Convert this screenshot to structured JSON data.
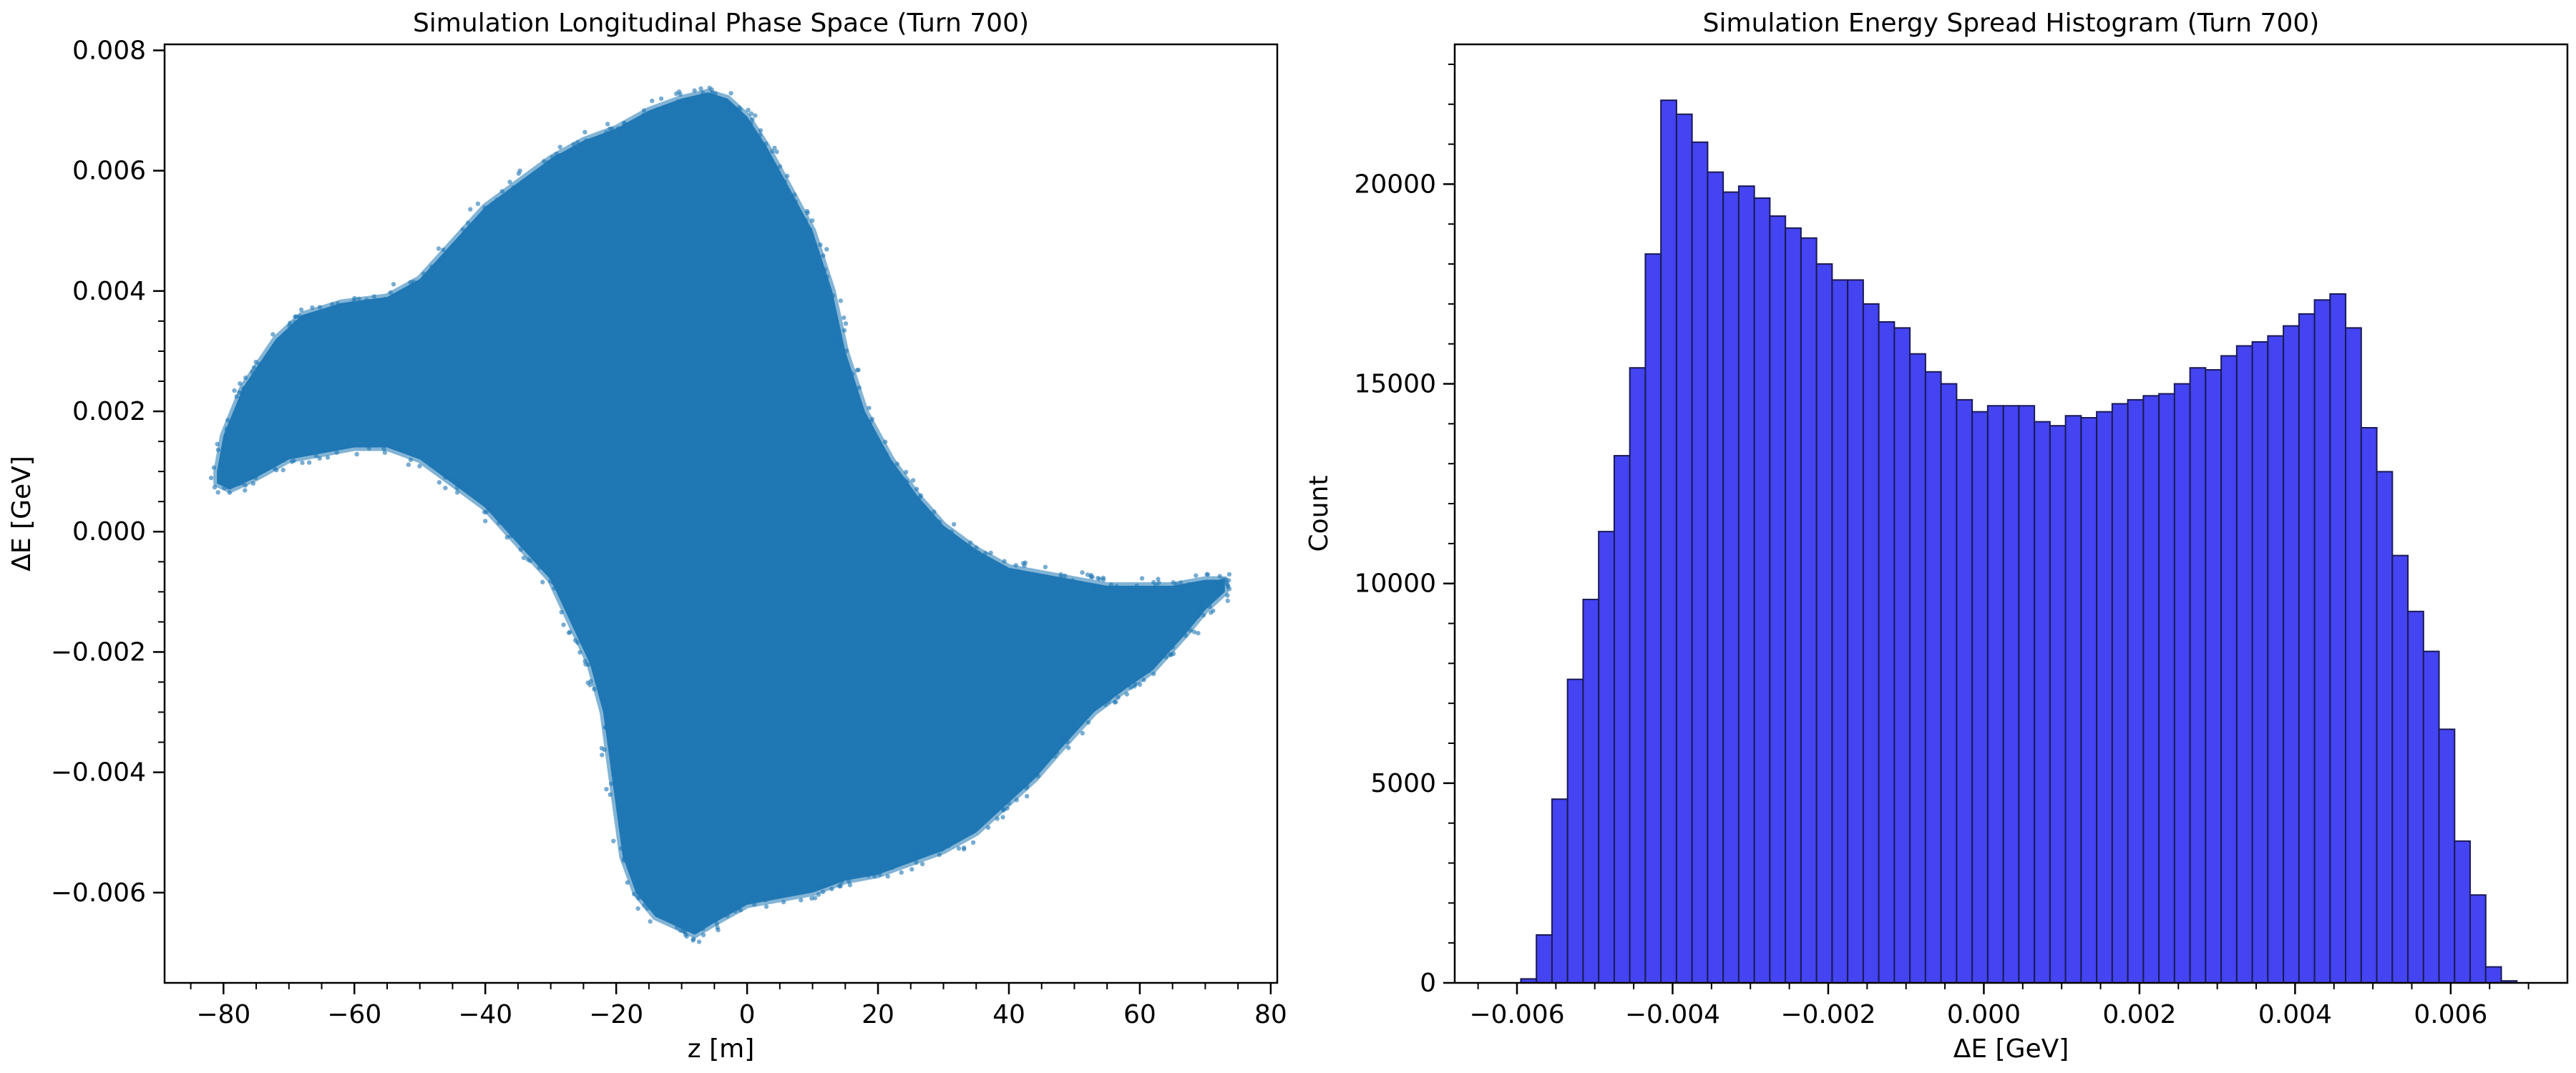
{
  "chart_data": [
    {
      "type": "scatter",
      "title": "Simulation Longitudinal Phase Space (Turn 700)",
      "xlabel": "z [m]",
      "ylabel": "ΔE [GeV]",
      "xlim": [
        -89,
        81
      ],
      "ylim": [
        -0.0075,
        0.0081
      ],
      "xticks": [
        -80,
        -60,
        -40,
        -20,
        0,
        20,
        40,
        60,
        80
      ],
      "xtick_labels": [
        "−80",
        "−60",
        "−40",
        "−20",
        "0",
        "20",
        "40",
        "60",
        "80"
      ],
      "yticks": [
        -0.006,
        -0.004,
        -0.002,
        0.0,
        0.002,
        0.004,
        0.006,
        0.008
      ],
      "ytick_labels": [
        "−0.006",
        "−0.004",
        "−0.002",
        "0.000",
        "0.002",
        "0.004",
        "0.006",
        "0.008"
      ],
      "color": "#1f77b4",
      "grid": false,
      "distribution_outline": {
        "upper_edge": [
          [
            -81,
            0.001
          ],
          [
            -80,
            0.0016
          ],
          [
            -77,
            0.0024
          ],
          [
            -72,
            0.0032
          ],
          [
            -68,
            0.0036
          ],
          [
            -62,
            0.0038
          ],
          [
            -55,
            0.0039
          ],
          [
            -50,
            0.0042
          ],
          [
            -45,
            0.0048
          ],
          [
            -40,
            0.0054
          ],
          [
            -35,
            0.0058
          ],
          [
            -30,
            0.0062
          ],
          [
            -25,
            0.0065
          ],
          [
            -20,
            0.0067
          ],
          [
            -15,
            0.007
          ],
          [
            -10,
            0.0072
          ],
          [
            -6,
            0.0073
          ],
          [
            -3,
            0.0072
          ],
          [
            0,
            0.0069
          ],
          [
            3,
            0.0064
          ],
          [
            6,
            0.0058
          ],
          [
            10,
            0.005
          ],
          [
            13,
            0.004
          ],
          [
            15,
            0.003
          ],
          [
            18,
            0.002
          ],
          [
            22,
            0.0012
          ],
          [
            26,
            0.0006
          ],
          [
            30,
            0.0001
          ],
          [
            35,
            -0.0003
          ],
          [
            40,
            -0.0006
          ],
          [
            45,
            -0.0007
          ],
          [
            50,
            -0.0008
          ],
          [
            55,
            -0.0009
          ],
          [
            60,
            -0.0009
          ],
          [
            65,
            -0.0009
          ],
          [
            70,
            -0.0008
          ],
          [
            73,
            -0.0008
          ]
        ],
        "lower_edge": [
          [
            73,
            -0.001
          ],
          [
            70,
            -0.0013
          ],
          [
            67,
            -0.0017
          ],
          [
            62,
            -0.0023
          ],
          [
            58,
            -0.0026
          ],
          [
            53,
            -0.003
          ],
          [
            48,
            -0.0036
          ],
          [
            44,
            -0.0041
          ],
          [
            40,
            -0.0045
          ],
          [
            35,
            -0.005
          ],
          [
            30,
            -0.0053
          ],
          [
            25,
            -0.0055
          ],
          [
            20,
            -0.0057
          ],
          [
            15,
            -0.0058
          ],
          [
            10,
            -0.006
          ],
          [
            5,
            -0.0061
          ],
          [
            0,
            -0.0062
          ],
          [
            -5,
            -0.0065
          ],
          [
            -8,
            -0.0067
          ],
          [
            -10,
            -0.0066
          ],
          [
            -14,
            -0.0064
          ],
          [
            -17,
            -0.006
          ],
          [
            -19,
            -0.0054
          ],
          [
            -20,
            -0.0046
          ],
          [
            -21,
            -0.0038
          ],
          [
            -22,
            -0.003
          ],
          [
            -24,
            -0.0022
          ],
          [
            -27,
            -0.0015
          ],
          [
            -30,
            -0.0008
          ],
          [
            -35,
            -0.0002
          ],
          [
            -40,
            0.0004
          ],
          [
            -45,
            0.0008
          ],
          [
            -50,
            0.0012
          ],
          [
            -55,
            0.0014
          ],
          [
            -60,
            0.0014
          ],
          [
            -65,
            0.0013
          ],
          [
            -70,
            0.0012
          ],
          [
            -75,
            0.0009
          ],
          [
            -79,
            0.0007
          ],
          [
            -81,
            0.0008
          ]
        ]
      }
    },
    {
      "type": "bar",
      "title": "Simulation Energy Spread Histogram (Turn 700)",
      "xlabel": "ΔE [GeV]",
      "ylabel": "Count",
      "xlim": [
        -0.0068,
        0.0075
      ],
      "ylim": [
        0,
        23500
      ],
      "xticks": [
        -0.006,
        -0.004,
        -0.002,
        0.0,
        0.002,
        0.004,
        0.006
      ],
      "xtick_labels": [
        "−0.006",
        "−0.004",
        "−0.002",
        "0.000",
        "0.002",
        "0.004",
        "0.006"
      ],
      "yticks": [
        0,
        5000,
        10000,
        15000,
        20000
      ],
      "ytick_labels": [
        "0",
        "5000",
        "10000",
        "15000",
        "20000"
      ],
      "color": "#4444f2",
      "edge_color": "#1a1a55",
      "grid": false,
      "bin_start": -0.00595,
      "bin_width": 0.0002,
      "values": [
        100,
        1200,
        4600,
        7600,
        9600,
        11300,
        13200,
        15400,
        18250,
        22100,
        21750,
        21050,
        20300,
        19800,
        19950,
        19650,
        19200,
        18900,
        18650,
        18000,
        17600,
        17600,
        17000,
        16550,
        16400,
        15750,
        15300,
        15000,
        14600,
        14300,
        14450,
        14450,
        14450,
        14050,
        13950,
        14200,
        14150,
        14300,
        14500,
        14600,
        14700,
        14750,
        15000,
        15400,
        15350,
        15700,
        15950,
        16050,
        16200,
        16450,
        16750,
        17100,
        17250,
        16400,
        13900,
        12800,
        10700,
        9300,
        8300,
        6350,
        3550,
        2200,
        400,
        50
      ]
    }
  ]
}
